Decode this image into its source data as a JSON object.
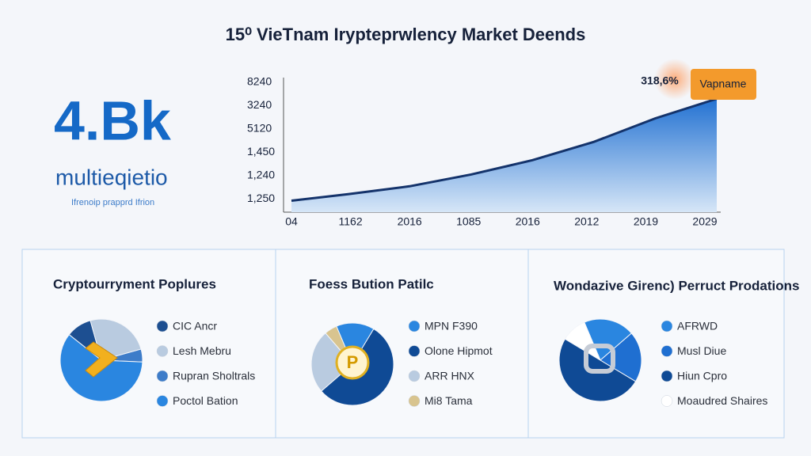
{
  "header": {
    "title": "15⁰ VieTnam Iryptерrwlency Market Dеends"
  },
  "kpi": {
    "value": "4.Bk",
    "label": "multieqietio",
    "caption": "Ifrenoip prapprd Ifrion"
  },
  "chart_data": [
    {
      "type": "area",
      "categories": [
        "04",
        "1162",
        "2016",
        "1085",
        "2016",
        "2012",
        "2019",
        "2029"
      ],
      "values": [
        7,
        12,
        18,
        27,
        38,
        52,
        70,
        85
      ],
      "ylim": [
        0,
        100
      ],
      "y_labels": [
        "8240",
        "3240",
        "5120",
        "1,450",
        "1,240",
        "1,250"
      ],
      "color": "#1f6fd1",
      "line_color": "#14336b",
      "annotation": "318,6%",
      "callout": "Vapname"
    },
    {
      "type": "pie",
      "title": "Cryptourryment Poplures",
      "categories": [
        "CIC Ancr",
        "Lesh Mebru",
        "Rupran Sholtrals",
        "Poctol Bation"
      ],
      "values": [
        10,
        25,
        5,
        60
      ],
      "colors": [
        "#1d4f91",
        "#b9cbe0",
        "#3d7cc9",
        "#2a86e0"
      ]
    },
    {
      "type": "pie",
      "title": "Foess Bution Patilc",
      "categories": [
        "MPN F390",
        "Olone Hipmot",
        "ARR HNX",
        "Mi8 Tama"
      ],
      "values": [
        15,
        55,
        25,
        5
      ],
      "colors": [
        "#2a86e0",
        "#0f4a95",
        "#b9cbe0",
        "#d8c48f"
      ]
    },
    {
      "type": "pie",
      "title": "Wondazive Girenc) Perruct Prodations",
      "categories": [
        "AFRWD",
        "Musl Diue",
        "Hiun Cpro",
        "Moaudred Shaires"
      ],
      "values": [
        20,
        20,
        50,
        10
      ],
      "colors": [
        "#2a86e0",
        "#1f6fd1",
        "#0f4a95",
        "#ffffff"
      ]
    }
  ]
}
